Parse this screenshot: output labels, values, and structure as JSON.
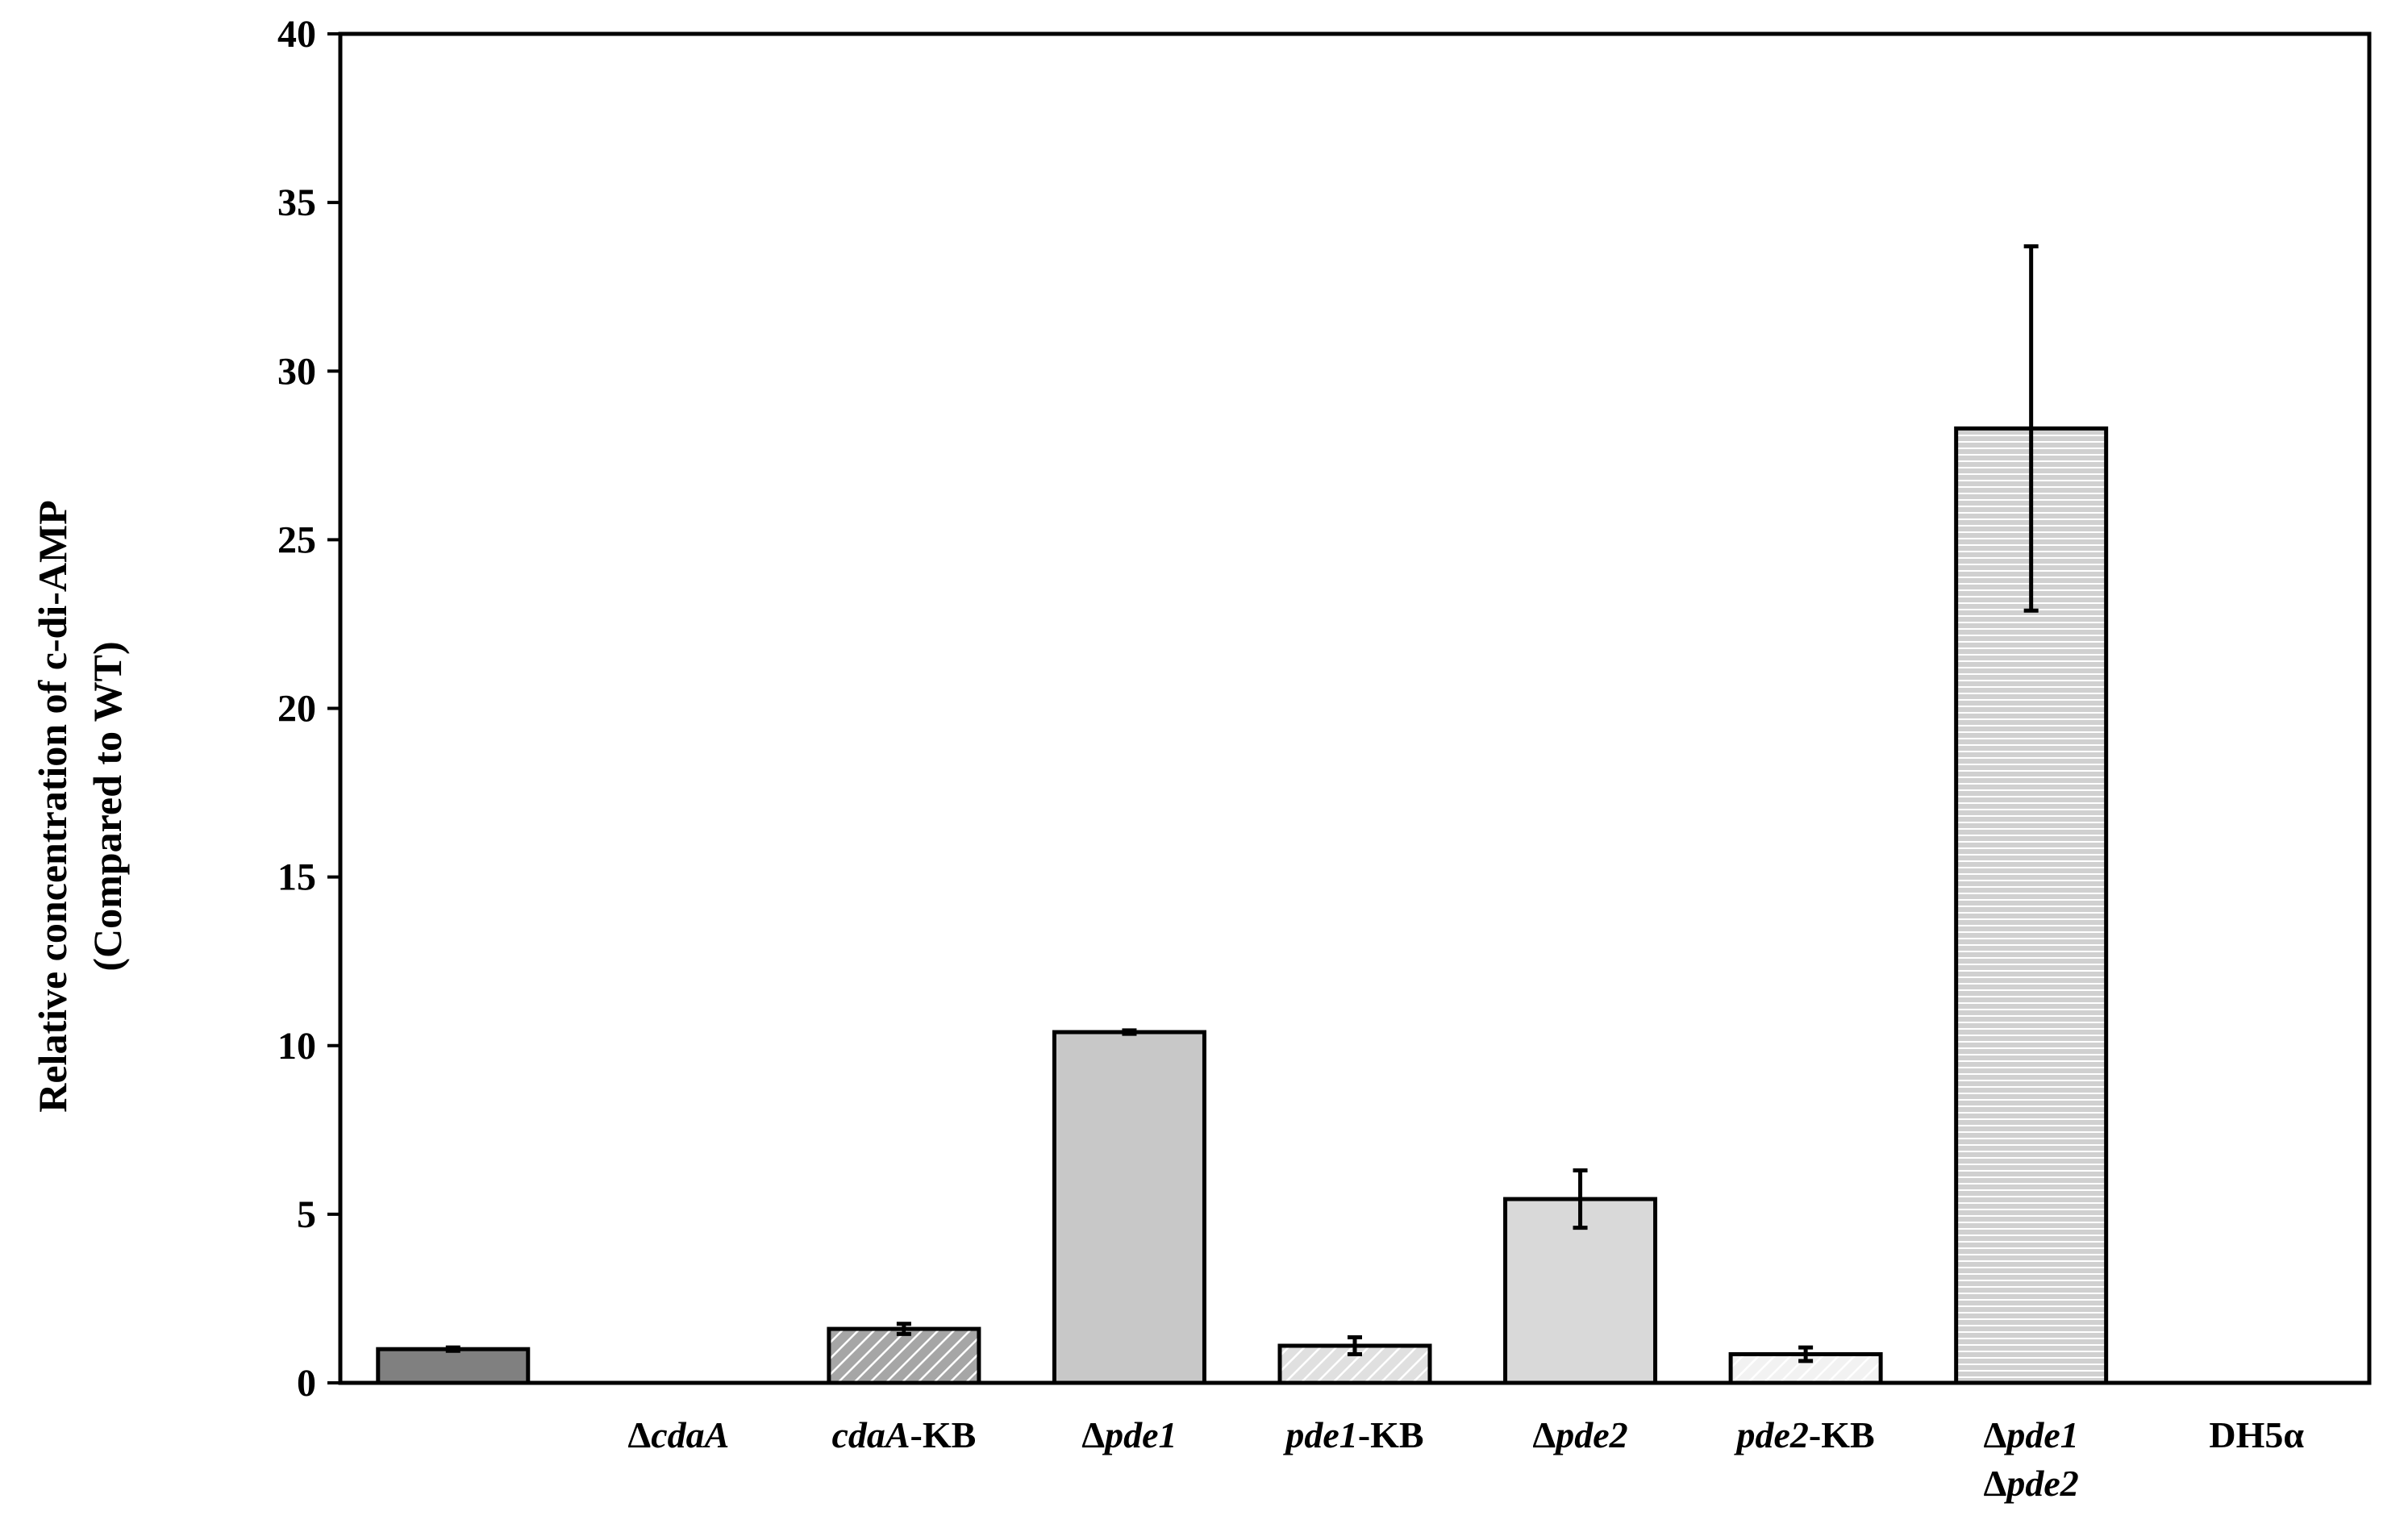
{
  "chart_data": {
    "type": "bar",
    "ylabel": [
      "Relative concentration of c-di-AMP",
      "(Compared to WT)"
    ],
    "xlabel": "",
    "ylim": [
      0,
      40
    ],
    "yticks": [
      0,
      5,
      10,
      15,
      20,
      25,
      30,
      35,
      40
    ],
    "grid": false,
    "legend": "none",
    "categories": [
      {
        "parts": [],
        "line2": []
      },
      {
        "parts": [
          {
            "t": "Δ",
            "i": false
          },
          {
            "t": "cdaA",
            "i": true
          }
        ],
        "line2": []
      },
      {
        "parts": [
          {
            "t": "cdaA",
            "i": true
          },
          {
            "t": "-KB",
            "i": false
          }
        ],
        "line2": []
      },
      {
        "parts": [
          {
            "t": "Δ",
            "i": false
          },
          {
            "t": "pde1",
            "i": true
          }
        ],
        "line2": []
      },
      {
        "parts": [
          {
            "t": "pde1",
            "i": true
          },
          {
            "t": "-KB",
            "i": false
          }
        ],
        "line2": []
      },
      {
        "parts": [
          {
            "t": "Δ",
            "i": false
          },
          {
            "t": "pde2",
            "i": true
          }
        ],
        "line2": []
      },
      {
        "parts": [
          {
            "t": "pde2",
            "i": true
          },
          {
            "t": "-KB",
            "i": false
          }
        ],
        "line2": []
      },
      {
        "parts": [
          {
            "t": "Δ",
            "i": false
          },
          {
            "t": "pde1",
            "i": true
          }
        ],
        "line2": [
          {
            "t": "Δ",
            "i": false
          },
          {
            "t": "pde2",
            "i": true
          }
        ]
      },
      {
        "parts": [
          {
            "t": "DH5α",
            "i": false
          }
        ],
        "line2": []
      }
    ],
    "values": [
      1.0,
      0,
      1.6,
      10.4,
      1.1,
      5.45,
      0.85,
      28.3,
      0
    ],
    "errors": [
      0.05,
      null,
      0.15,
      0.05,
      0.25,
      0.85,
      0.2,
      5.4,
      null
    ],
    "bar_styles": [
      {
        "fill": "#808080",
        "pattern": "none"
      },
      {
        "fill": "none",
        "pattern": "none"
      },
      {
        "fill": "#a6a6a6",
        "pattern": "diagonal"
      },
      {
        "fill": "#c8c8c8",
        "pattern": "none"
      },
      {
        "fill": "#e0e0e0",
        "pattern": "diagonal"
      },
      {
        "fill": "#d9d9d9",
        "pattern": "none"
      },
      {
        "fill": "#f2f2f2",
        "pattern": "diagonal"
      },
      {
        "fill": "#d0d0d0",
        "pattern": "horizontal"
      },
      {
        "fill": "none",
        "pattern": "none"
      }
    ],
    "colors": {
      "axis": "#000000",
      "bar_stroke": "#000000",
      "hatch": "#ffffff"
    }
  }
}
